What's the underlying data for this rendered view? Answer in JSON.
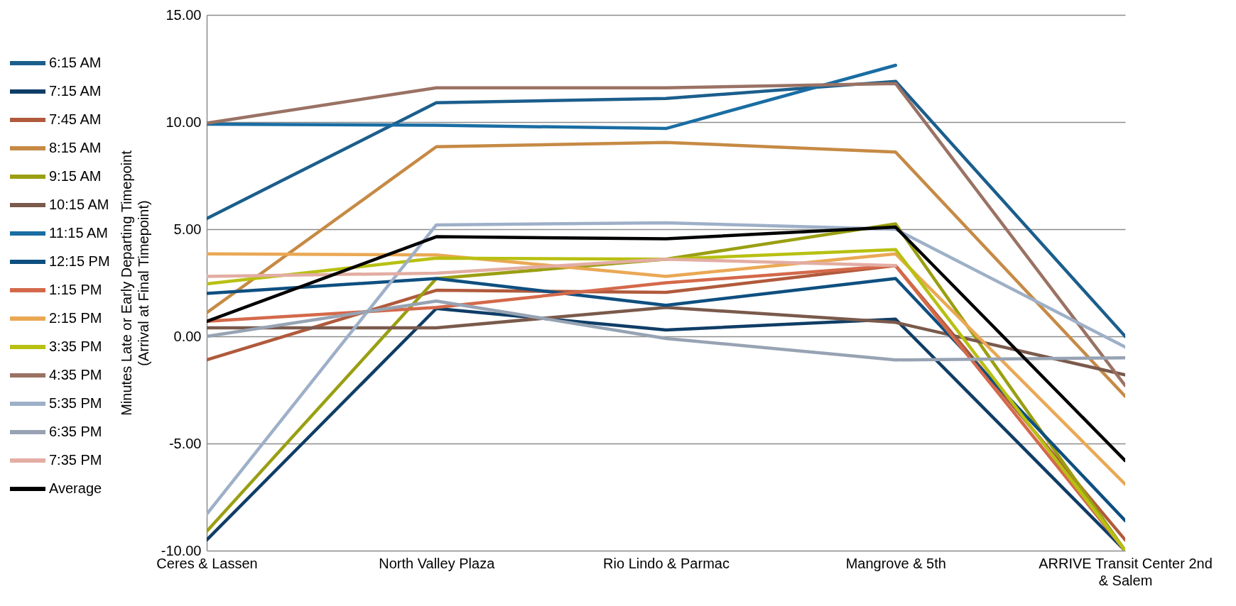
{
  "chart_data": {
    "type": "line",
    "ylabel": "Minutes Late or Early Departing Timepoint (Arrival at Final Timepoint)",
    "categories": [
      "Ceres & Lassen",
      "North Valley Plaza",
      "Rio Lindo & Parmac",
      "Mangrove & 5th",
      "ARRIVE Transit Center 2nd & Salem"
    ],
    "ylim": [
      -10,
      15
    ],
    "yticks": [
      {
        "value": -10,
        "label": "-10.00"
      },
      {
        "value": -5,
        "label": "-5.00"
      },
      {
        "value": 0,
        "label": "0.00"
      },
      {
        "value": 5,
        "label": "5.00"
      },
      {
        "value": 10,
        "label": "10.00"
      },
      {
        "value": 15,
        "label": "15.00"
      }
    ],
    "grid": "y",
    "legend": "left",
    "marker": "none",
    "line_style": "solid",
    "series": [
      {
        "name": "6:15 AM",
        "color": "#1b5e8c",
        "values": [
          5.5,
          10.9,
          11.1,
          11.9,
          0.0
        ]
      },
      {
        "name": "7:15 AM",
        "color": "#0f3d66",
        "values": [
          -9.5,
          1.3,
          0.3,
          0.8,
          -10
        ]
      },
      {
        "name": "7:45 AM",
        "color": "#b05a3c",
        "values": [
          -1.1,
          2.15,
          2.05,
          3.3,
          -9.5
        ]
      },
      {
        "name": "8:15 AM",
        "color": "#c68a45",
        "values": [
          1.1,
          8.85,
          9.05,
          8.6,
          -2.8
        ]
      },
      {
        "name": "9:15 AM",
        "color": "#9a9f12",
        "values": [
          -9.1,
          2.7,
          3.6,
          5.25,
          -10
        ]
      },
      {
        "name": "10:15 AM",
        "color": "#7a5a4c",
        "values": [
          0.4,
          0.4,
          1.35,
          0.65,
          -1.8
        ]
      },
      {
        "name": "11:15 AM",
        "color": "#1a6da3",
        "values": [
          9.9,
          9.85,
          9.7,
          12.65,
          null
        ]
      },
      {
        "name": "12:15 PM",
        "color": "#0e4f80",
        "values": [
          2.0,
          2.7,
          1.45,
          2.7,
          -8.6
        ]
      },
      {
        "name": "1:15 PM",
        "color": "#d4694a",
        "values": [
          0.7,
          1.35,
          2.5,
          3.3,
          -10
        ]
      },
      {
        "name": "2:15 PM",
        "color": "#eaa854",
        "values": [
          3.85,
          3.8,
          2.8,
          3.85,
          -6.9
        ]
      },
      {
        "name": "3:35 PM",
        "color": "#b8c012",
        "values": [
          2.45,
          3.65,
          3.6,
          4.05,
          -10
        ]
      },
      {
        "name": "4:35 PM",
        "color": "#9a7264",
        "values": [
          9.95,
          11.6,
          11.6,
          11.8,
          -2.3
        ]
      },
      {
        "name": "5:35 PM",
        "color": "#9eb0c8",
        "values": [
          -8.3,
          5.2,
          5.3,
          5.0,
          -0.5
        ]
      },
      {
        "name": "6:35 PM",
        "color": "#97a3b3",
        "values": [
          0.0,
          1.65,
          -0.1,
          -1.1,
          -1.0
        ]
      },
      {
        "name": "7:35 PM",
        "color": "#e3ada3",
        "values": [
          2.8,
          2.95,
          3.6,
          3.3,
          null
        ]
      },
      {
        "name": "Average",
        "color": "#000000",
        "values": [
          0.7,
          4.65,
          4.55,
          5.1,
          -5.8
        ]
      }
    ]
  }
}
